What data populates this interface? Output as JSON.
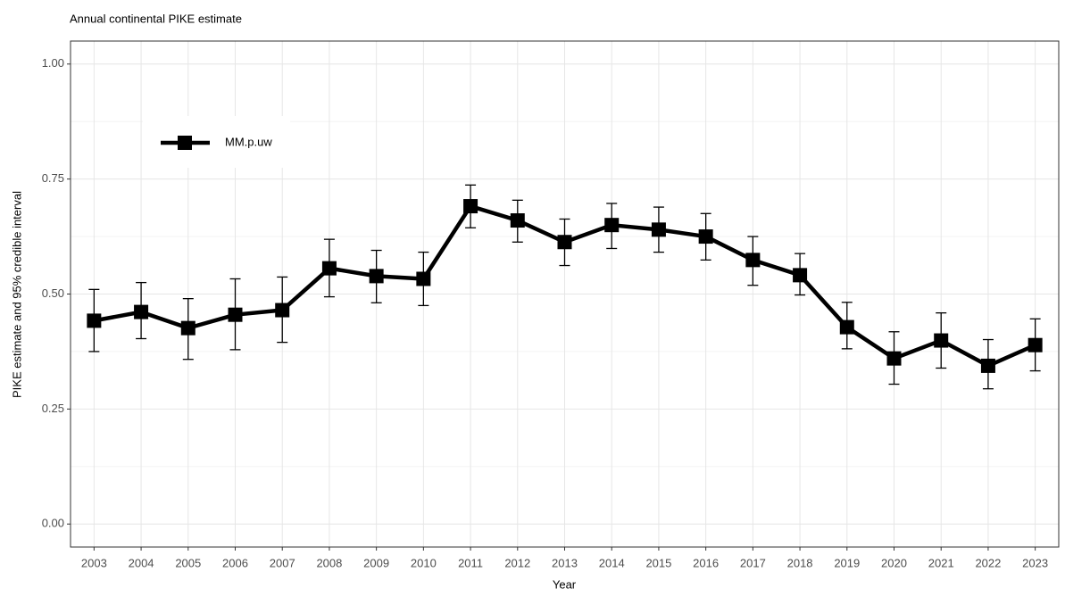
{
  "chart_data": {
    "type": "line",
    "title": "Annual continental PIKE estimate",
    "x_label": "Year",
    "y_label": "PIKE estimate and 95% credible interval",
    "categories": [
      "2003",
      "2004",
      "2005",
      "2006",
      "2007",
      "2008",
      "2009",
      "2010",
      "2011",
      "2012",
      "2013",
      "2014",
      "2015",
      "2016",
      "2017",
      "2018",
      "2019",
      "2020",
      "2021",
      "2022",
      "2023"
    ],
    "series": [
      {
        "name": "MM.p.uw",
        "color": "#000000",
        "values": [
          0.442,
          0.461,
          0.426,
          0.455,
          0.465,
          0.556,
          0.539,
          0.533,
          0.691,
          0.66,
          0.613,
          0.65,
          0.64,
          0.625,
          0.574,
          0.541,
          0.428,
          0.36,
          0.399,
          0.344,
          0.389
        ],
        "lower": [
          0.375,
          0.403,
          0.358,
          0.379,
          0.395,
          0.494,
          0.481,
          0.475,
          0.644,
          0.613,
          0.562,
          0.599,
          0.591,
          0.574,
          0.519,
          0.498,
          0.381,
          0.304,
          0.339,
          0.294,
          0.333
        ],
        "upper": [
          0.51,
          0.525,
          0.49,
          0.533,
          0.537,
          0.619,
          0.595,
          0.591,
          0.737,
          0.704,
          0.663,
          0.697,
          0.689,
          0.675,
          0.625,
          0.588,
          0.482,
          0.418,
          0.459,
          0.401,
          0.446
        ]
      }
    ],
    "ylim": [
      -0.05,
      1.05
    ],
    "yticks": [
      {
        "value": 0,
        "label": "0.00"
      },
      {
        "value": 0.25,
        "label": "0.25"
      },
      {
        "value": 0.5,
        "label": "0.50"
      },
      {
        "value": 0.75,
        "label": "0.75"
      },
      {
        "value": 1,
        "label": "1.00"
      }
    ],
    "grid": true,
    "legend": "top-left"
  }
}
